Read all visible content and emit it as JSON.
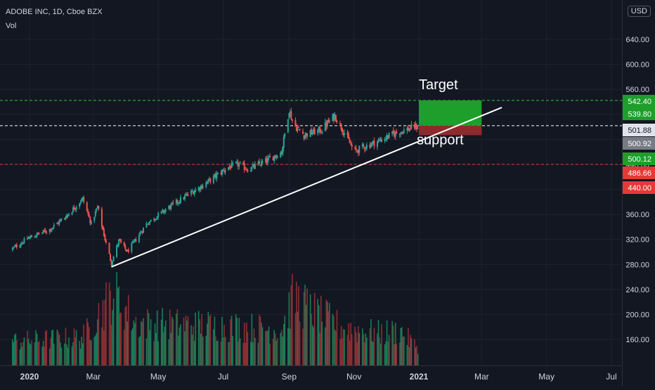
{
  "header": {
    "symbol_line": "ADOBE INC, 1D, Cboe BZX",
    "volume_label": "Vol",
    "currency": "USD"
  },
  "colors": {
    "background": "#131722",
    "grid": "#1f2330",
    "up": "#26a69a",
    "down": "#ef5350",
    "vol_up": "#1b7a57",
    "vol_down": "#8a2f33",
    "target_box": "#1e9e2a",
    "stop_box": "#8e2a2c",
    "trendline": "#ffffff"
  },
  "chart_data": {
    "type": "candlestick",
    "title": "ADOBE INC, 1D, Cboe BZX",
    "ylim": [
      110,
      680
    ],
    "y_ticks": [
      160,
      200,
      240,
      280,
      320,
      360,
      400,
      440,
      480,
      520,
      560,
      600,
      640
    ],
    "y_tick_labels": [
      "160.00",
      "200.00",
      "240.00",
      "280.00",
      "320.00",
      "360.00",
      "",
      "440.00",
      "",
      "",
      "560.00",
      "600.00",
      "640.00"
    ],
    "x_ticks": [
      {
        "label": "2020",
        "date": "2020-01-01"
      },
      {
        "label": "Mar",
        "date": "2020-03-01"
      },
      {
        "label": "May",
        "date": "2020-05-01"
      },
      {
        "label": "Jul",
        "date": "2020-07-01"
      },
      {
        "label": "Sep",
        "date": "2020-09-01"
      },
      {
        "label": "Nov",
        "date": "2020-11-01"
      },
      {
        "label": "2021",
        "date": "2021-01-01"
      },
      {
        "label": "Mar",
        "date": "2021-03-01"
      },
      {
        "label": "May",
        "date": "2021-05-01"
      },
      {
        "label": "Jul",
        "date": "2021-07-01"
      }
    ],
    "x_range": [
      "2019-12-15",
      "2021-07-25"
    ],
    "price_path": [
      [
        "2019-12-15",
        304
      ],
      [
        "2019-12-31",
        322
      ],
      [
        "2020-01-20",
        336
      ],
      [
        "2020-02-05",
        358
      ],
      [
        "2020-02-20",
        385
      ],
      [
        "2020-02-28",
        345
      ],
      [
        "2020-03-05",
        372
      ],
      [
        "2020-03-12",
        320
      ],
      [
        "2020-03-18",
        282
      ],
      [
        "2020-03-25",
        318
      ],
      [
        "2020-04-02",
        300
      ],
      [
        "2020-04-20",
        345
      ],
      [
        "2020-05-10",
        370
      ],
      [
        "2020-06-01",
        395
      ],
      [
        "2020-06-15",
        410
      ],
      [
        "2020-07-05",
        435
      ],
      [
        "2020-07-15",
        440
      ],
      [
        "2020-07-25",
        432
      ],
      [
        "2020-08-10",
        445
      ],
      [
        "2020-08-25",
        460
      ],
      [
        "2020-09-01",
        528
      ],
      [
        "2020-09-05",
        504
      ],
      [
        "2020-09-15",
        487
      ],
      [
        "2020-10-01",
        495
      ],
      [
        "2020-10-14",
        518
      ],
      [
        "2020-10-25",
        485
      ],
      [
        "2020-11-01",
        460
      ],
      [
        "2020-11-10",
        468
      ],
      [
        "2020-11-25",
        478
      ],
      [
        "2020-12-10",
        490
      ],
      [
        "2020-12-28",
        500
      ]
    ],
    "volume_path": [
      [
        "2019-12-15",
        1.2
      ],
      [
        "2020-02-20",
        1.4
      ],
      [
        "2020-03-12",
        3.0
      ],
      [
        "2020-03-20",
        3.6
      ],
      [
        "2020-04-10",
        2.1
      ],
      [
        "2020-06-15",
        2.0
      ],
      [
        "2020-08-25",
        1.8
      ],
      [
        "2020-09-05",
        3.4
      ],
      [
        "2020-09-20",
        2.8
      ],
      [
        "2020-10-20",
        1.9
      ],
      [
        "2020-11-25",
        1.6
      ],
      [
        "2020-12-15",
        1.7
      ],
      [
        "2020-12-28",
        1.0
      ]
    ],
    "volume_ylim": [
      0,
      4.5
    ],
    "price_markers": [
      {
        "label": "542.40",
        "value": 542.4,
        "color": "#1e9e2a"
      },
      {
        "label": "539.80",
        "value": 539.8,
        "color": "#1e9e2a"
      },
      {
        "label": "501.88",
        "value": 501.88,
        "color": "#e0e3eb"
      },
      {
        "label": "500.92",
        "value": 500.92,
        "color": "#787b86"
      },
      {
        "label": "500.12",
        "value": 500.12,
        "color": "#1e9e2a"
      },
      {
        "label": "486.66",
        "value": 486.66,
        "color": "#e53935"
      },
      {
        "label": "440.00",
        "value": 440,
        "color": "#e53935"
      }
    ],
    "horizontal_lines": [
      {
        "value": 542.4,
        "color": "#36c437",
        "style": "dashed"
      },
      {
        "value": 501.88,
        "color": "#ffffff",
        "style": "dashed"
      },
      {
        "value": 440,
        "color": "#e53935",
        "style": "dashed"
      }
    ],
    "trendline": {
      "start": [
        "2020-03-18",
        276
      ],
      "end": [
        "2021-03-20",
        531
      ]
    },
    "target_box": {
      "x_start": "2021-01-01",
      "x_end": "2021-03-01",
      "top": 542.4,
      "bottom": 501.88
    },
    "stop_box": {
      "x_start": "2021-01-01",
      "x_end": "2021-03-01",
      "top": 501.88,
      "bottom": 486.66
    },
    "annotations": [
      {
        "text": "Target",
        "date": "2021-01-01",
        "value": 560
      },
      {
        "text": "support",
        "date": "2020-12-30",
        "value": 472
      }
    ]
  }
}
